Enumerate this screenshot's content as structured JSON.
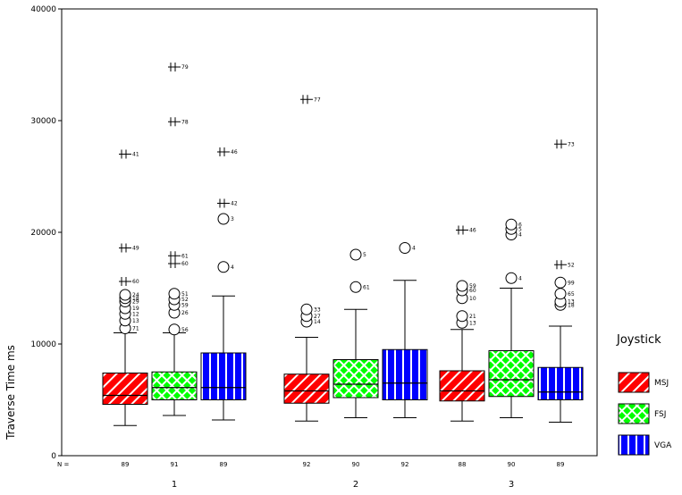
{
  "chart_data": {
    "type": "boxplot",
    "ylabel": "Traverse Time ms",
    "ylim": [
      0,
      40000
    ],
    "yticks": [
      0,
      10000,
      20000,
      30000,
      40000
    ],
    "ytick_labels": [
      "0",
      "10000",
      "20000",
      "30000",
      "40000"
    ],
    "categories": [
      "1",
      "2",
      "3"
    ],
    "n_row_label": "N =",
    "legend": {
      "title": "Joystick",
      "position": "right",
      "entries": [
        {
          "label": "MSJ",
          "color": "#ff0000",
          "pattern": "diagonal"
        },
        {
          "label": "FSJ",
          "color": "#00ff00",
          "pattern": "crosshatch"
        },
        {
          "label": "VGA",
          "color": "#0000ff",
          "pattern": "vertical"
        }
      ]
    },
    "groups": [
      {
        "category": "1",
        "joystick": "MSJ",
        "n": "89",
        "min": 2700,
        "q1": 4600,
        "median": 5400,
        "q3": 7400,
        "max": 11000,
        "outliers": [
          {
            "y": 11400,
            "sym": "o",
            "label": "71"
          },
          {
            "y": 12100,
            "sym": "o",
            "label": "13"
          },
          {
            "y": 12700,
            "sym": "o",
            "label": "12"
          },
          {
            "y": 13200,
            "sym": "o",
            "label": "19"
          },
          {
            "y": 13800,
            "sym": "o",
            "label": "29"
          },
          {
            "y": 14100,
            "sym": "o",
            "label": "18"
          },
          {
            "y": 14400,
            "sym": "o",
            "label": "24"
          }
        ],
        "extremes": [
          {
            "y": 15600,
            "label": "60"
          },
          {
            "y": 18600,
            "label": "49"
          },
          {
            "y": 27000,
            "label": "41"
          }
        ]
      },
      {
        "category": "1",
        "joystick": "FSJ",
        "n": "91",
        "min": 3600,
        "q1": 5000,
        "median": 6100,
        "q3": 7500,
        "max": 11000,
        "outliers": [
          {
            "y": 11300,
            "sym": "o",
            "label": "56"
          },
          {
            "y": 12800,
            "sym": "o",
            "label": "26"
          },
          {
            "y": 13500,
            "sym": "o",
            "label": "59"
          },
          {
            "y": 14000,
            "sym": "o",
            "label": "52"
          },
          {
            "y": 14500,
            "sym": "o",
            "label": "51"
          }
        ],
        "extremes": [
          {
            "y": 17200,
            "label": "60"
          },
          {
            "y": 17900,
            "label": "61"
          },
          {
            "y": 29900,
            "label": "78"
          },
          {
            "y": 34800,
            "label": "79"
          }
        ]
      },
      {
        "category": "1",
        "joystick": "VGA",
        "n": "89",
        "min": 3200,
        "q1": 5000,
        "median": 6100,
        "q3": 9200,
        "max": 14300,
        "outliers": [
          {
            "y": 16900,
            "sym": "o",
            "label": "4"
          },
          {
            "y": 21200,
            "sym": "o",
            "label": "3"
          }
        ],
        "extremes": [
          {
            "y": 22600,
            "label": "42"
          },
          {
            "y": 27200,
            "label": "46"
          }
        ]
      },
      {
        "category": "2",
        "joystick": "MSJ",
        "n": "92",
        "min": 3100,
        "q1": 4700,
        "median": 5800,
        "q3": 7300,
        "max": 10600,
        "outliers": [
          {
            "y": 12000,
            "sym": "o",
            "label": "14"
          },
          {
            "y": 12500,
            "sym": "o",
            "label": "27"
          },
          {
            "y": 13100,
            "sym": "o",
            "label": "33"
          }
        ],
        "extremes": [
          {
            "y": 31900,
            "label": "77"
          }
        ]
      },
      {
        "category": "2",
        "joystick": "FSJ",
        "n": "90",
        "min": 3400,
        "q1": 5200,
        "median": 6400,
        "q3": 8600,
        "max": 13100,
        "outliers": [
          {
            "y": 15100,
            "sym": "o",
            "label": "61"
          },
          {
            "y": 18000,
            "sym": "o",
            "label": "5"
          }
        ],
        "extremes": []
      },
      {
        "category": "2",
        "joystick": "VGA",
        "n": "92",
        "min": 3400,
        "q1": 5000,
        "median": 6500,
        "q3": 9500,
        "max": 15700,
        "outliers": [
          {
            "y": 18600,
            "sym": "o",
            "label": "4"
          }
        ],
        "extremes": []
      },
      {
        "category": "3",
        "joystick": "MSJ",
        "n": "88",
        "min": 3100,
        "q1": 4900,
        "median": 5800,
        "q3": 7600,
        "max": 11300,
        "outliers": [
          {
            "y": 11900,
            "sym": "o",
            "label": "13"
          },
          {
            "y": 12500,
            "sym": "o",
            "label": "21"
          },
          {
            "y": 14100,
            "sym": "o",
            "label": "10"
          },
          {
            "y": 14800,
            "sym": "o",
            "label": "60"
          },
          {
            "y": 15200,
            "sym": "o",
            "label": "59"
          }
        ],
        "extremes": [
          {
            "y": 20200,
            "label": "46"
          }
        ]
      },
      {
        "category": "3",
        "joystick": "FSJ",
        "n": "90",
        "min": 3400,
        "q1": 5300,
        "median": 6800,
        "q3": 9400,
        "max": 15000,
        "outliers": [
          {
            "y": 15900,
            "sym": "o",
            "label": "4"
          },
          {
            "y": 19800,
            "sym": "o",
            "label": "4"
          },
          {
            "y": 20300,
            "sym": "o",
            "label": "5"
          },
          {
            "y": 20700,
            "sym": "o",
            "label": "6"
          }
        ],
        "extremes": []
      },
      {
        "category": "3",
        "joystick": "VGA",
        "n": "89",
        "min": 3000,
        "q1": 5000,
        "median": 5700,
        "q3": 7900,
        "max": 11600,
        "outliers": [
          {
            "y": 13500,
            "sym": "o",
            "label": "18"
          },
          {
            "y": 13800,
            "sym": "o",
            "label": "13"
          },
          {
            "y": 14500,
            "sym": "o",
            "label": "65"
          },
          {
            "y": 15500,
            "sym": "o",
            "label": "99"
          }
        ],
        "extremes": [
          {
            "y": 17100,
            "label": "52"
          },
          {
            "y": 27900,
            "label": "73"
          }
        ]
      }
    ]
  }
}
